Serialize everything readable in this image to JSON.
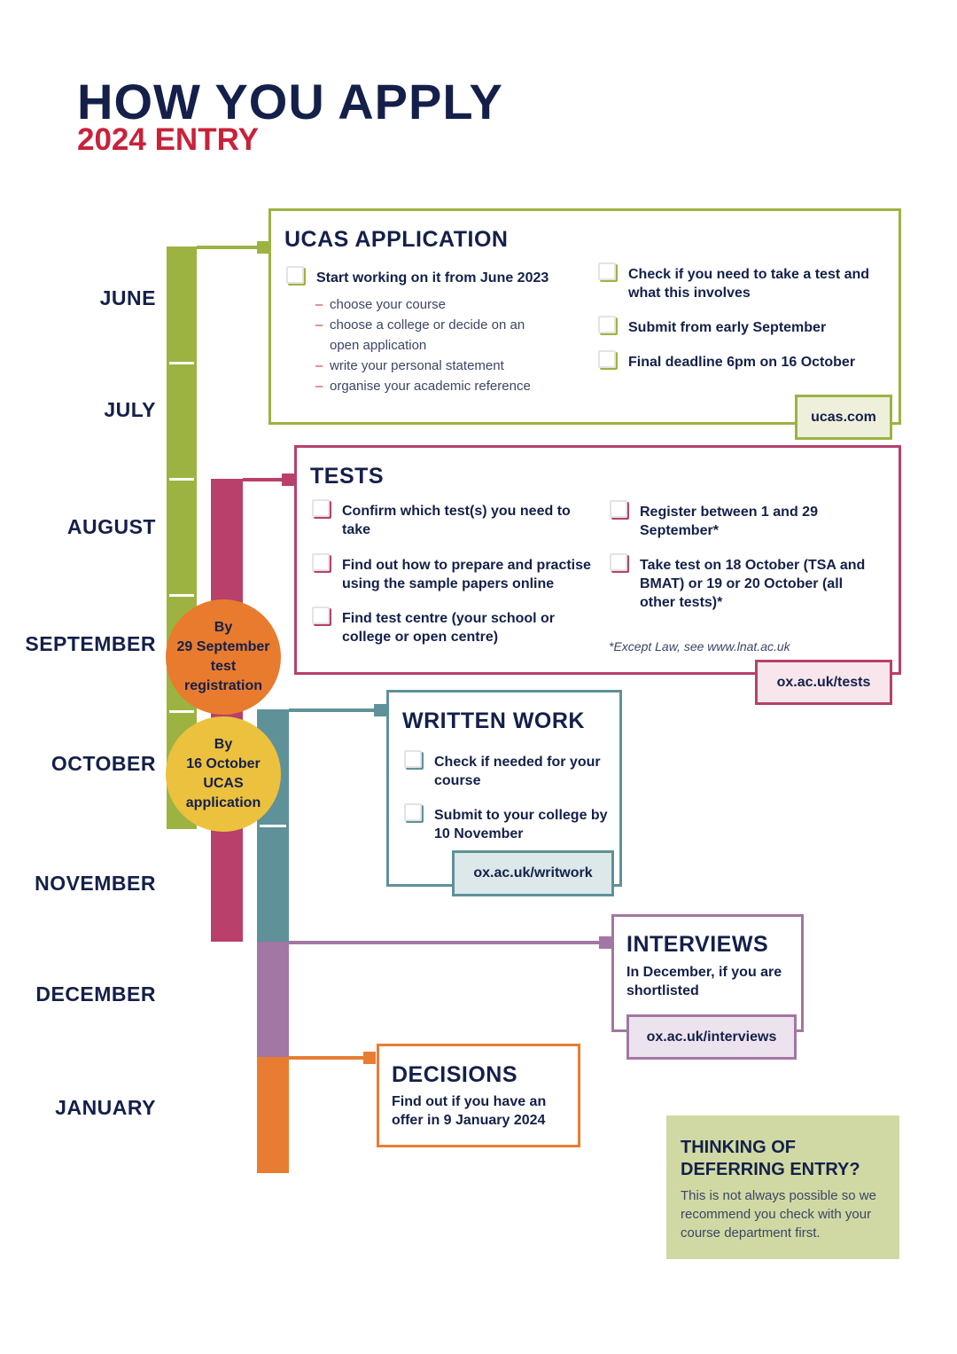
{
  "header": {
    "title": "HOW YOU APPLY",
    "subtitle": "2024 ENTRY"
  },
  "months": [
    "JUNE",
    "JULY",
    "AUGUST",
    "SEPTEMBER",
    "OCTOBER",
    "NOVEMBER",
    "DECEMBER",
    "JANUARY"
  ],
  "colors": {
    "navy": "#14204a",
    "red": "#c8223a",
    "green": "#9cb342",
    "pink": "#b8406b",
    "teal": "#5f9199",
    "purple": "#a277a4",
    "orange": "#e87d32",
    "yellow": "#ecc13d",
    "defer_bg": "#d0d9a3"
  },
  "milestones": [
    {
      "lines": [
        "By",
        "29 September",
        "test",
        "registration"
      ]
    },
    {
      "lines": [
        "By",
        "16 October",
        "UCAS",
        "application"
      ]
    }
  ],
  "ucas": {
    "title": "UCAS APPLICATION",
    "start": "Start working on it from June 2023",
    "subitems": [
      "choose your course",
      "choose a college or decide on an open application",
      "write your personal statement",
      "organise your academic reference"
    ],
    "right": [
      "Check if you need to take a test and what this involves",
      "Submit from early September",
      "Final deadline 6pm on 16 October"
    ],
    "link": "ucas.com"
  },
  "tests": {
    "title": "TESTS",
    "left": [
      "Confirm which test(s) you need to take",
      "Find out how to prepare and practise using the sample papers online",
      "Find test centre (your school or college or open centre)"
    ],
    "right": [
      "Register between 1 and 29 September*",
      "Take test on 18 October (TSA and BMAT) or 19 or 20 October (all other tests)*"
    ],
    "note": "*Except Law, see www.lnat.ac.uk",
    "link": "ox.ac.uk/tests"
  },
  "written": {
    "title": "WRITTEN WORK",
    "items": [
      "Check if needed for your course",
      "Submit to your college by 10 November"
    ],
    "link": "ox.ac.uk/writwork"
  },
  "interviews": {
    "title": "INTERVIEWS",
    "text": "In December, if you are shortlisted",
    "link": "ox.ac.uk/interviews"
  },
  "decisions": {
    "title": "DECISIONS",
    "text": "Find out if you have an offer in 9 January 2024"
  },
  "defer": {
    "title": "THINKING OF DEFERRING ENTRY?",
    "text": "This is not always possible so we recommend you check with your course department first."
  }
}
